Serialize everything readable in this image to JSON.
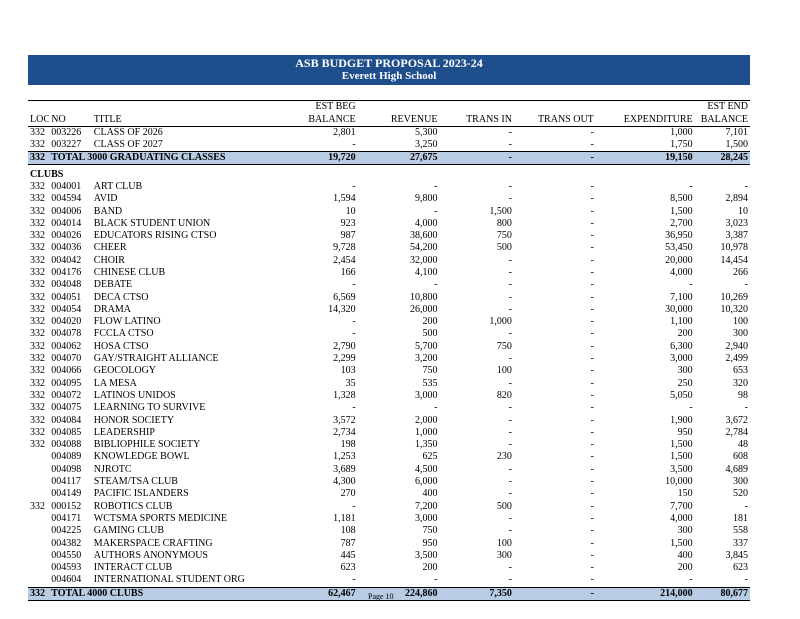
{
  "header": {
    "title": "ASB BUDGET PROPOSAL 2023-24",
    "school": "Everett High School"
  },
  "columns": {
    "loc": "LOC",
    "no": "NO",
    "title": "TITLE",
    "beg_top": "EST BEG",
    "beg_bottom": "BALANCE",
    "revenue": "REVENUE",
    "trans_in": "TRANS IN",
    "trans_out": "TRANS OUT",
    "expenditure": "EXPENDITURE",
    "end_top": "EST END",
    "end_bottom": "BALANCE"
  },
  "grad_rows": [
    {
      "loc": "332",
      "no": "003226",
      "title": "CLASS OF 2026",
      "beg": "2,801",
      "rev": "5,300",
      "tin": "-",
      "tout": "-",
      "exp": "1,000",
      "end": "7,101"
    },
    {
      "loc": "332",
      "no": "003227",
      "title": "CLASS OF 2027",
      "beg": "-",
      "rev": "3,250",
      "tin": "-",
      "tout": "-",
      "exp": "1,750",
      "end": "1,500"
    }
  ],
  "grad_total": {
    "loc": "332",
    "label": "TOTAL 3000 GRADUATING CLASSES",
    "beg": "19,720",
    "rev": "27,675",
    "tin": "-",
    "tout": "-",
    "exp": "19,150",
    "end": "28,245"
  },
  "clubs_heading": "CLUBS",
  "club_rows": [
    {
      "loc": "332",
      "no": "004001",
      "title": "ART CLUB",
      "beg": "-",
      "rev": "-",
      "tin": "-",
      "tout": "-",
      "exp": "-",
      "end": "-"
    },
    {
      "loc": "332",
      "no": "004594",
      "title": "AVID",
      "beg": "1,594",
      "rev": "9,800",
      "tin": "-",
      "tout": "-",
      "exp": "8,500",
      "end": "2,894"
    },
    {
      "loc": "332",
      "no": "004006",
      "title": "BAND",
      "beg": "10",
      "rev": "-",
      "tin": "1,500",
      "tout": "-",
      "exp": "1,500",
      "end": "10"
    },
    {
      "loc": "332",
      "no": "004014",
      "title": "BLACK STUDENT UNION",
      "beg": "923",
      "rev": "4,000",
      "tin": "800",
      "tout": "-",
      "exp": "2,700",
      "end": "3,023"
    },
    {
      "loc": "332",
      "no": "004026",
      "title": "EDUCATORS RISING CTSO",
      "beg": "987",
      "rev": "38,600",
      "tin": "750",
      "tout": "-",
      "exp": "36,950",
      "end": "3,387"
    },
    {
      "loc": "332",
      "no": "004036",
      "title": "CHEER",
      "beg": "9,728",
      "rev": "54,200",
      "tin": "500",
      "tout": "-",
      "exp": "53,450",
      "end": "10,978"
    },
    {
      "loc": "332",
      "no": "004042",
      "title": "CHOIR",
      "beg": "2,454",
      "rev": "32,000",
      "tin": "-",
      "tout": "-",
      "exp": "20,000",
      "end": "14,454"
    },
    {
      "loc": "332",
      "no": "004176",
      "title": "CHINESE CLUB",
      "beg": "166",
      "rev": "4,100",
      "tin": "-",
      "tout": "-",
      "exp": "4,000",
      "end": "266"
    },
    {
      "loc": "332",
      "no": "004048",
      "title": "DEBATE",
      "beg": "-",
      "rev": "-",
      "tin": "-",
      "tout": "-",
      "exp": "-",
      "end": "-"
    },
    {
      "loc": "332",
      "no": "004051",
      "title": "DECA CTSO",
      "beg": "6,569",
      "rev": "10,800",
      "tin": "-",
      "tout": "-",
      "exp": "7,100",
      "end": "10,269"
    },
    {
      "loc": "332",
      "no": "004054",
      "title": "DRAMA",
      "beg": "14,320",
      "rev": "26,000",
      "tin": "-",
      "tout": "-",
      "exp": "30,000",
      "end": "10,320"
    },
    {
      "loc": "332",
      "no": "004020",
      "title": "FLOW LATINO",
      "beg": "-",
      "rev": "200",
      "tin": "1,000",
      "tout": "-",
      "exp": "1,100",
      "end": "100"
    },
    {
      "loc": "332",
      "no": "004078",
      "title": "FCCLA CTSO",
      "beg": "-",
      "rev": "500",
      "tin": "-",
      "tout": "-",
      "exp": "200",
      "end": "300"
    },
    {
      "loc": "332",
      "no": "004062",
      "title": "HOSA CTSO",
      "beg": "2,790",
      "rev": "5,700",
      "tin": "750",
      "tout": "-",
      "exp": "6,300",
      "end": "2,940"
    },
    {
      "loc": "332",
      "no": "004070",
      "title": "GAY/STRAIGHT ALLIANCE",
      "beg": "2,299",
      "rev": "3,200",
      "tin": "-",
      "tout": "-",
      "exp": "3,000",
      "end": "2,499"
    },
    {
      "loc": "332",
      "no": "004066",
      "title": "GEOCOLOGY",
      "beg": "103",
      "rev": "750",
      "tin": "100",
      "tout": "-",
      "exp": "300",
      "end": "653"
    },
    {
      "loc": "332",
      "no": "004095",
      "title": "LA MESA",
      "beg": "35",
      "rev": "535",
      "tin": "-",
      "tout": "-",
      "exp": "250",
      "end": "320"
    },
    {
      "loc": "332",
      "no": "004072",
      "title": "LATINOS UNIDOS",
      "beg": "1,328",
      "rev": "3,000",
      "tin": "820",
      "tout": "-",
      "exp": "5,050",
      "end": "98"
    },
    {
      "loc": "332",
      "no": "004075",
      "title": "LEARNING TO SURVIVE",
      "beg": "-",
      "rev": "-",
      "tin": "-",
      "tout": "-",
      "exp": "-",
      "end": "-"
    },
    {
      "loc": "332",
      "no": "004084",
      "title": "HONOR SOCIETY",
      "beg": "3,572",
      "rev": "2,000",
      "tin": "-",
      "tout": "-",
      "exp": "1,900",
      "end": "3,672"
    },
    {
      "loc": "332",
      "no": "004085",
      "title": "LEADERSHIP",
      "beg": "2,734",
      "rev": "1,000",
      "tin": "-",
      "tout": "-",
      "exp": "950",
      "end": "2,784"
    },
    {
      "loc": "332",
      "no": "004088",
      "title": "BIBLIOPHILE SOCIETY",
      "beg": "198",
      "rev": "1,350",
      "tin": "-",
      "tout": "-",
      "exp": "1,500",
      "end": "48"
    },
    {
      "loc": "",
      "no": "004089",
      "title": "KNOWLEDGE BOWL",
      "beg": "1,253",
      "rev": "625",
      "tin": "230",
      "tout": "-",
      "exp": "1,500",
      "end": "608"
    },
    {
      "loc": "",
      "no": "004098",
      "title": "NJROTC",
      "beg": "3,689",
      "rev": "4,500",
      "tin": "-",
      "tout": "-",
      "exp": "3,500",
      "end": "4,689"
    },
    {
      "loc": "",
      "no": "004117",
      "title": "STEAM/TSA CLUB",
      "beg": "4,300",
      "rev": "6,000",
      "tin": "-",
      "tout": "-",
      "exp": "10,000",
      "end": "300"
    },
    {
      "loc": "",
      "no": "004149",
      "title": "PACIFIC ISLANDERS",
      "beg": "270",
      "rev": "400",
      "tin": "-",
      "tout": "-",
      "exp": "150",
      "end": "520"
    },
    {
      "loc": "332",
      "no": "000152",
      "title": "ROBOTICS CLUB",
      "beg": "-",
      "rev": "7,200",
      "tin": "500",
      "tout": "-",
      "exp": "7,700",
      "end": "-"
    },
    {
      "loc": "",
      "no": "004171",
      "title": "WCTSMA SPORTS MEDICINE",
      "beg": "1,181",
      "rev": "3,000",
      "tin": "-",
      "tout": "-",
      "exp": "4,000",
      "end": "181"
    },
    {
      "loc": "",
      "no": "004225",
      "title": "GAMING CLUB",
      "beg": "108",
      "rev": "750",
      "tin": "-",
      "tout": "-",
      "exp": "300",
      "end": "558"
    },
    {
      "loc": "",
      "no": "004382",
      "title": "MAKERSPACE CRAFTING",
      "beg": "787",
      "rev": "950",
      "tin": "100",
      "tout": "-",
      "exp": "1,500",
      "end": "337"
    },
    {
      "loc": "",
      "no": "004550",
      "title": "AUTHORS ANONYMOUS",
      "beg": "445",
      "rev": "3,500",
      "tin": "300",
      "tout": "-",
      "exp": "400",
      "end": "3,845"
    },
    {
      "loc": "",
      "no": "004593",
      "title": "INTERACT CLUB",
      "beg": "623",
      "rev": "200",
      "tin": "-",
      "tout": "-",
      "exp": "200",
      "end": "623"
    },
    {
      "loc": "",
      "no": "004604",
      "title": "INTERNATIONAL STUDENT ORG",
      "beg": "-",
      "rev": "-",
      "tin": "-",
      "tout": "-",
      "exp": "-",
      "end": "-"
    }
  ],
  "club_total": {
    "loc": "332",
    "label": "TOTAL 4000 CLUBS",
    "beg": "62,467",
    "rev": "224,860",
    "tin": "7,350",
    "tout": "-",
    "exp": "214,000",
    "end": "80,677"
  },
  "footer": {
    "page": "Page 10"
  }
}
